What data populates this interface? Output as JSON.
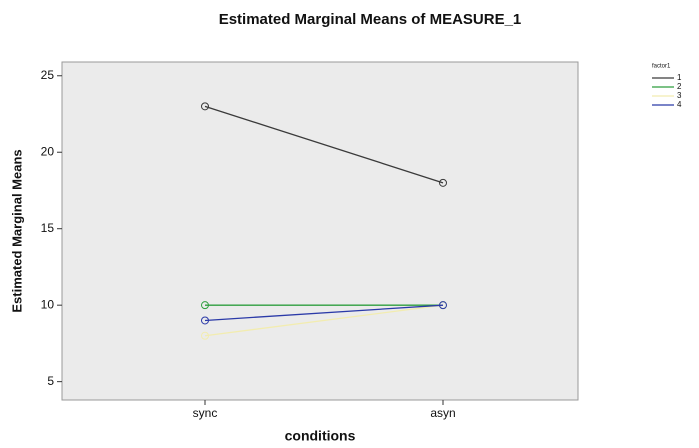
{
  "chart_data": {
    "type": "line",
    "title": "Estimated Marginal Means of MEASURE_1",
    "x_label": "conditions",
    "y_label": "Estimated Marginal Means",
    "legend_title": "factor1",
    "categories": [
      "sync",
      "asyn"
    ],
    "series": [
      {
        "name": "1",
        "color": "#3a3a3a",
        "values": [
          23,
          18
        ]
      },
      {
        "name": "2",
        "color": "#2e9e3e",
        "values": [
          10,
          10
        ]
      },
      {
        "name": "3",
        "color": "#f2ecb0",
        "values": [
          8,
          10
        ]
      },
      {
        "name": "4",
        "color": "#2b3aa8",
        "values": [
          9,
          10
        ]
      }
    ],
    "ylim": [
      3.8,
      25.9
    ],
    "yticks": [
      5,
      10,
      15,
      20,
      25
    ],
    "legend_position": "right"
  }
}
